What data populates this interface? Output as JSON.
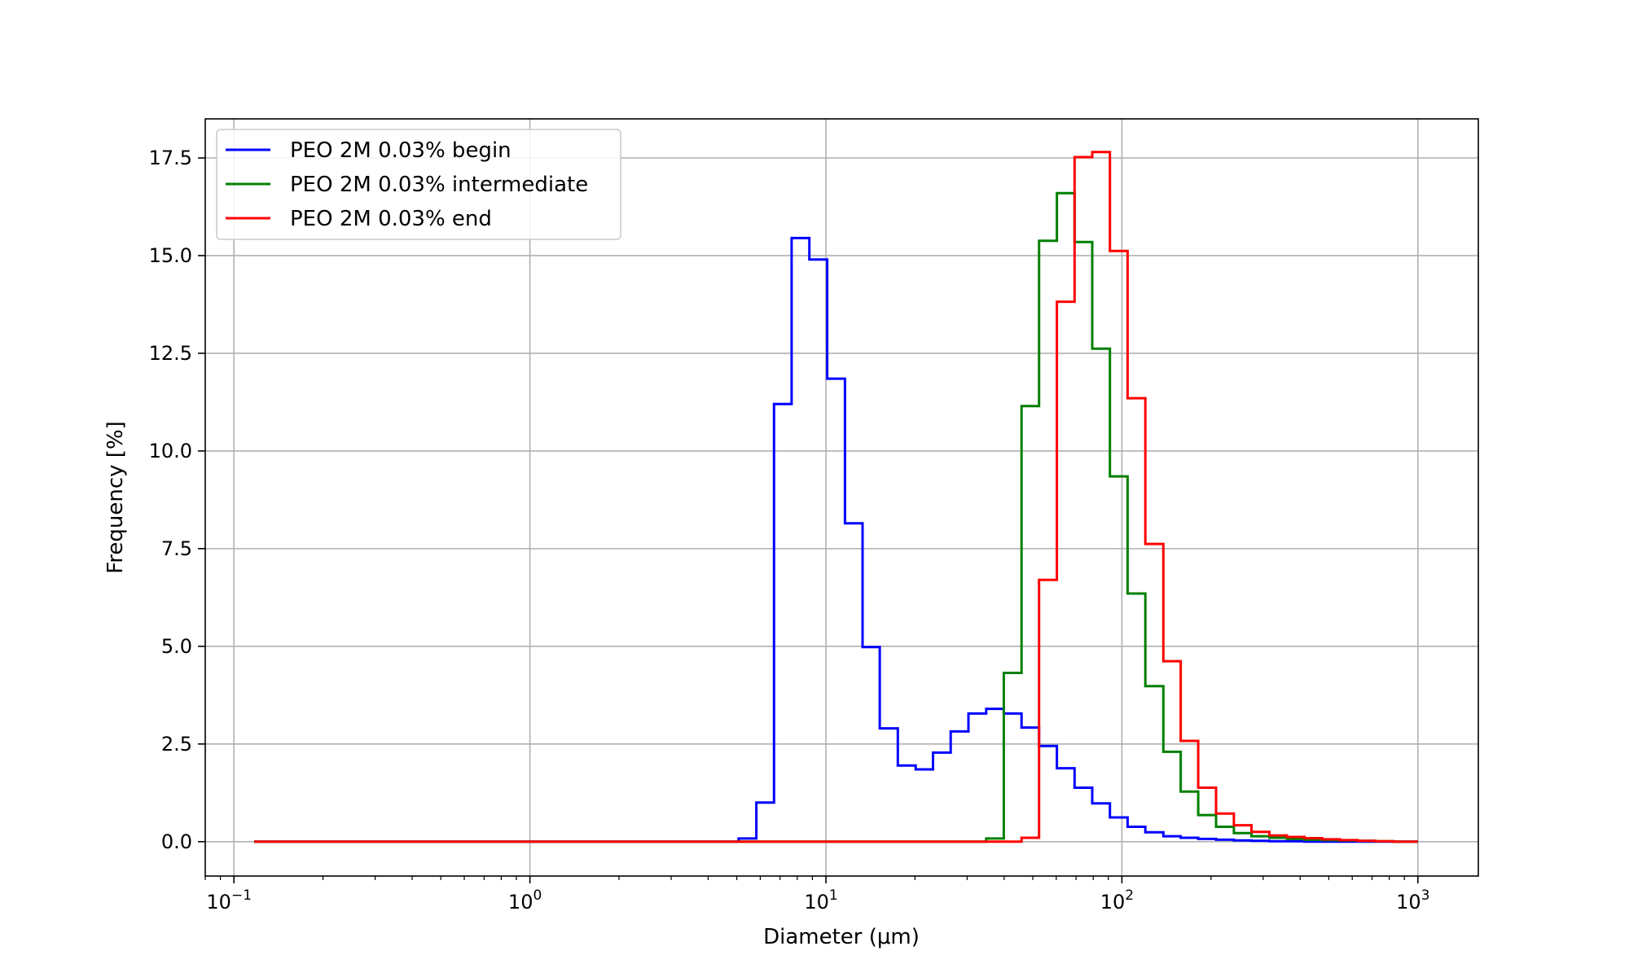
{
  "chart_data": {
    "type": "line",
    "drawstyle": "steps-post",
    "xscale": "log",
    "xlabel": "Diameter (μm)",
    "ylabel": "Frequency [%]",
    "xlim": [
      0.08,
      1600
    ],
    "ylim": [
      -0.88,
      18.5
    ],
    "grid": true,
    "legend_position": "upper left",
    "x_ticks": [
      {
        "base": "10",
        "exp": "−1",
        "value": 0.1
      },
      {
        "base": "10",
        "exp": "0",
        "value": 1
      },
      {
        "base": "10",
        "exp": "1",
        "value": 10
      },
      {
        "base": "10",
        "exp": "2",
        "value": 100
      },
      {
        "base": "10",
        "exp": "3",
        "value": 1000
      }
    ],
    "y_ticks": [
      {
        "label": "0.0",
        "value": 0
      },
      {
        "label": "2.5",
        "value": 2.5
      },
      {
        "label": "5.0",
        "value": 5
      },
      {
        "label": "7.5",
        "value": 7.5
      },
      {
        "label": "10.0",
        "value": 10
      },
      {
        "label": "12.5",
        "value": 12.5
      },
      {
        "label": "15.0",
        "value": 15
      },
      {
        "label": "17.5",
        "value": 17.5
      }
    ],
    "x": [
      0.117,
      5.07,
      5.82,
      6.68,
      7.66,
      8.79,
      10.1,
      11.6,
      13.3,
      15.2,
      17.5,
      20.1,
      23.0,
      26.4,
      30.3,
      34.8,
      39.9,
      45.8,
      52.5,
      60.3,
      69.2,
      79.4,
      91.1,
      104.5,
      120,
      138,
      158,
      181,
      208,
      239,
      274,
      315,
      361,
      414,
      475,
      545,
      626,
      718,
      825,
      1000
    ],
    "series": [
      {
        "name": "PEO 2M 0.03% begin",
        "color": "#0000ff",
        "values": [
          0,
          0.08,
          1.0,
          11.2,
          15.45,
          14.9,
          11.85,
          8.15,
          4.98,
          2.9,
          1.95,
          1.85,
          2.28,
          2.82,
          3.28,
          3.4,
          3.28,
          2.92,
          2.45,
          1.88,
          1.38,
          0.98,
          0.62,
          0.38,
          0.24,
          0.14,
          0.1,
          0.07,
          0.05,
          0.03,
          0.02,
          0.01,
          0.01,
          0.0,
          0.0,
          0.0,
          0.0,
          0.0,
          0.0,
          0.0
        ]
      },
      {
        "name": "PEO 2M 0.03% intermediate",
        "color": "#008000",
        "values": [
          0,
          0,
          0,
          0,
          0,
          0,
          0,
          0,
          0,
          0,
          0,
          0,
          0,
          0,
          0,
          0.08,
          4.32,
          11.15,
          15.38,
          16.6,
          15.35,
          12.62,
          9.35,
          6.35,
          3.98,
          2.3,
          1.28,
          0.68,
          0.38,
          0.22,
          0.14,
          0.1,
          0.07,
          0.05,
          0.04,
          0.03,
          0.02,
          0.01,
          0.0,
          0.0
        ]
      },
      {
        "name": "PEO 2M 0.03% end",
        "color": "#ff0000",
        "values": [
          0,
          0,
          0,
          0,
          0,
          0,
          0,
          0,
          0,
          0,
          0,
          0,
          0,
          0,
          0,
          0,
          0,
          0.1,
          6.7,
          13.82,
          17.52,
          17.65,
          15.12,
          11.35,
          7.62,
          4.62,
          2.58,
          1.38,
          0.72,
          0.42,
          0.25,
          0.16,
          0.12,
          0.09,
          0.06,
          0.04,
          0.02,
          0.01,
          0.0,
          0.0
        ]
      }
    ]
  }
}
